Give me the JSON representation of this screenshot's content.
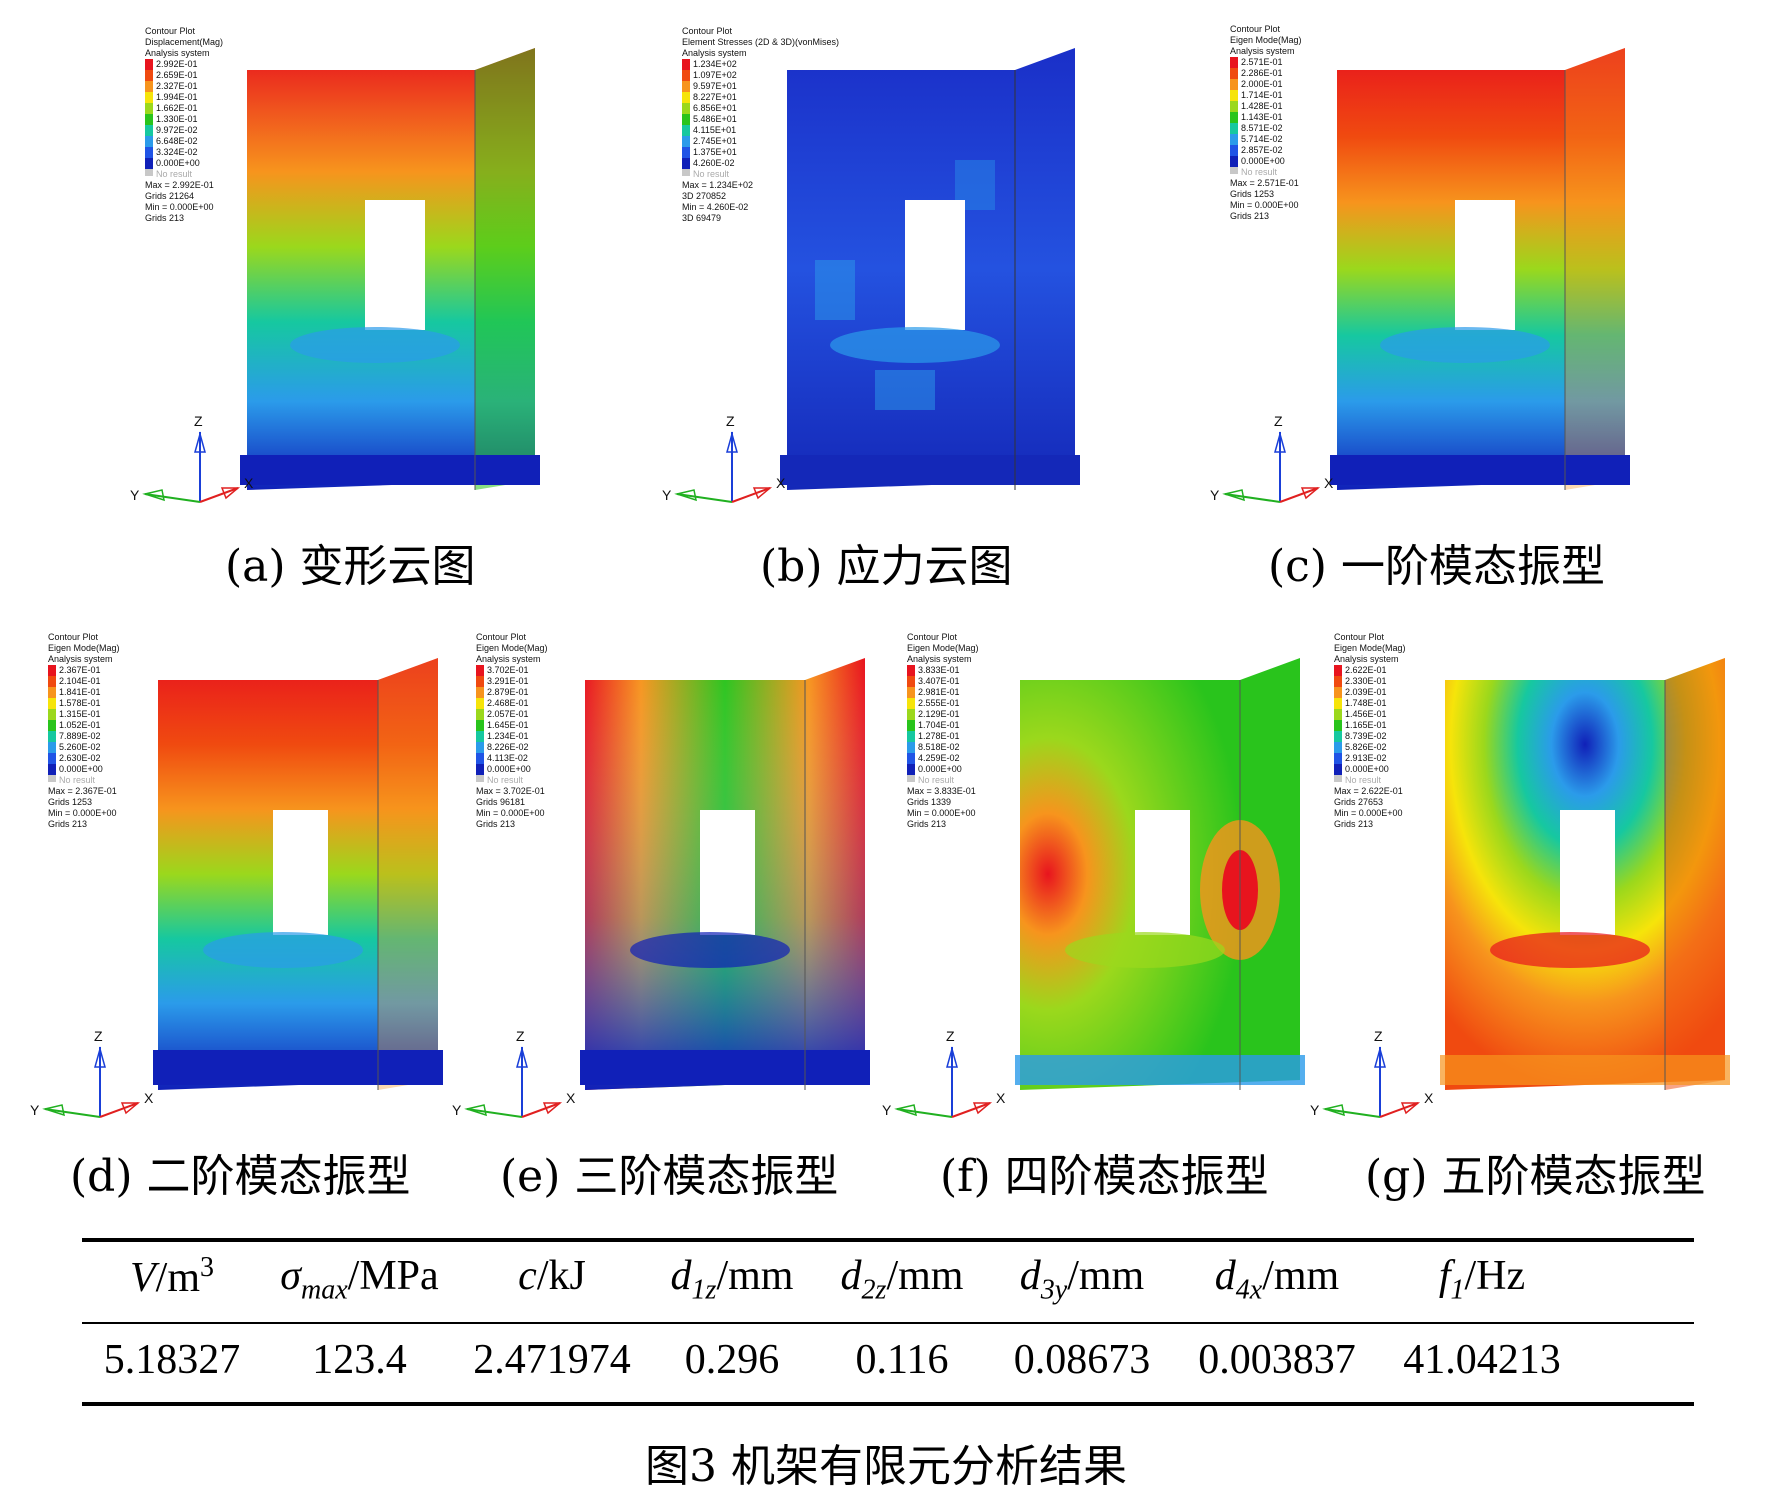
{
  "panels": [
    {
      "id": "a",
      "caption": "(a) 变形云图",
      "legend": {
        "title": [
          "Contour Plot",
          "Displacement(Mag)",
          "Analysis system"
        ],
        "values": [
          "2.992E-01",
          "2.659E-01",
          "2.327E-01",
          "1.994E-01",
          "1.662E-01",
          "1.330E-01",
          "9.972E-02",
          "6.648E-02",
          "3.324E-02",
          "0.000E+00"
        ],
        "no_result": "No result",
        "footer": [
          "Max = 2.992E-01",
          "Grids 21264",
          "Min = 0.000E+00",
          "Grids 213"
        ]
      },
      "axes": {
        "z": "Z",
        "y": "Y",
        "x": "X"
      }
    },
    {
      "id": "b",
      "caption": "(b) 应力云图",
      "legend": {
        "title": [
          "Contour Plot",
          "Element Stresses (2D & 3D)(vonMises)",
          "Analysis system"
        ],
        "values": [
          "1.234E+02",
          "1.097E+02",
          "9.597E+01",
          "8.227E+01",
          "6.856E+01",
          "5.486E+01",
          "4.115E+01",
          "2.745E+01",
          "1.375E+01",
          "4.260E-02"
        ],
        "no_result": "No result",
        "footer": [
          "Max = 1.234E+02",
          "3D 270852",
          "Min = 4.260E-02",
          "3D 69479"
        ]
      },
      "axes": {
        "z": "Z",
        "y": "Y",
        "x": "X"
      }
    },
    {
      "id": "c",
      "caption": "(c) 一阶模态振型",
      "legend": {
        "title": [
          "Contour Plot",
          "Eigen Mode(Mag)",
          "Analysis system"
        ],
        "values": [
          "2.571E-01",
          "2.286E-01",
          "2.000E-01",
          "1.714E-01",
          "1.428E-01",
          "1.143E-01",
          "8.571E-02",
          "5.714E-02",
          "2.857E-02",
          "0.000E+00"
        ],
        "no_result": "No result",
        "footer": [
          "Max = 2.571E-01",
          "Grids 1253",
          "Min = 0.000E+00",
          "Grids 213"
        ]
      },
      "axes": {
        "z": "Z",
        "y": "Y",
        "x": "X"
      }
    },
    {
      "id": "d",
      "caption": "(d) 二阶模态振型",
      "legend": {
        "title": [
          "Contour Plot",
          "Eigen Mode(Mag)",
          "Analysis system"
        ],
        "values": [
          "2.367E-01",
          "2.104E-01",
          "1.841E-01",
          "1.578E-01",
          "1.315E-01",
          "1.052E-01",
          "7.889E-02",
          "5.260E-02",
          "2.630E-02",
          "0.000E+00"
        ],
        "no_result": "No result",
        "footer": [
          "Max = 2.367E-01",
          "Grids 1253",
          "Min = 0.000E+00",
          "Grids 213"
        ]
      },
      "axes": {
        "z": "Z",
        "y": "Y",
        "x": "X"
      }
    },
    {
      "id": "e",
      "caption": "(e) 三阶模态振型",
      "legend": {
        "title": [
          "Contour Plot",
          "Eigen Mode(Mag)",
          "Analysis system"
        ],
        "values": [
          "3.702E-01",
          "3.291E-01",
          "2.879E-01",
          "2.468E-01",
          "2.057E-01",
          "1.645E-01",
          "1.234E-01",
          "8.226E-02",
          "4.113E-02",
          "0.000E+00"
        ],
        "no_result": "No result",
        "footer": [
          "Max = 3.702E-01",
          "Grids 96181",
          "Min = 0.000E+00",
          "Grids 213"
        ]
      },
      "axes": {
        "z": "Z",
        "y": "Y",
        "x": "X"
      }
    },
    {
      "id": "f",
      "caption": "(f) 四阶模态振型",
      "legend": {
        "title": [
          "Contour Plot",
          "Eigen Mode(Mag)",
          "Analysis system"
        ],
        "values": [
          "3.833E-01",
          "3.407E-01",
          "2.981E-01",
          "2.555E-01",
          "2.129E-01",
          "1.704E-01",
          "1.278E-01",
          "8.518E-02",
          "4.259E-02",
          "0.000E+00"
        ],
        "no_result": "No result",
        "footer": [
          "Max = 3.833E-01",
          "Grids 1339",
          "Min = 0.000E+00",
          "Grids 213"
        ]
      },
      "axes": {
        "z": "Z",
        "y": "Y",
        "x": "X"
      }
    },
    {
      "id": "g",
      "caption": "(g) 五阶模态振型",
      "legend": {
        "title": [
          "Contour Plot",
          "Eigen Mode(Mag)",
          "Analysis system"
        ],
        "values": [
          "2.622E-01",
          "2.330E-01",
          "2.039E-01",
          "1.748E-01",
          "1.456E-01",
          "1.165E-01",
          "8.739E-02",
          "5.826E-02",
          "2.913E-02",
          "0.000E+00"
        ],
        "no_result": "No result",
        "footer": [
          "Max = 2.622E-01",
          "Grids 27653",
          "Min = 0.000E+00",
          "Grids 213"
        ]
      },
      "axes": {
        "z": "Z",
        "y": "Y",
        "x": "X"
      }
    }
  ],
  "legend_colors": [
    "#e8141e",
    "#f04a10",
    "#f7941d",
    "#f6e40a",
    "#9bd81c",
    "#29c41c",
    "#16c8a0",
    "#2b9bea",
    "#2054e6",
    "#1020b8"
  ],
  "no_result_color": "#c8c8c8",
  "table": {
    "headers": [
      {
        "main": "V",
        "sub": "",
        "sup": "3",
        "unit_pre": "/m",
        "unit_post": ""
      },
      {
        "main": "σ",
        "sub": "max",
        "sup": "",
        "unit_pre": "/MPa",
        "unit_post": ""
      },
      {
        "main": "c",
        "sub": "",
        "sup": "",
        "unit_pre": "/kJ",
        "unit_post": ""
      },
      {
        "main": "d",
        "sub": "1z",
        "sup": "",
        "unit_pre": "/mm",
        "unit_post": ""
      },
      {
        "main": "d",
        "sub": "2z",
        "sup": "",
        "unit_pre": "/mm",
        "unit_post": ""
      },
      {
        "main": "d",
        "sub": "3y",
        "sup": "",
        "unit_pre": "/mm",
        "unit_post": ""
      },
      {
        "main": "d",
        "sub": "4x",
        "sup": "",
        "unit_pre": "/mm",
        "unit_post": ""
      },
      {
        "main": "f",
        "sub": "1",
        "sup": "",
        "unit_pre": "/Hz",
        "unit_post": ""
      }
    ],
    "values": [
      "5.18327",
      "123.4",
      "2.471974",
      "0.296",
      "0.116",
      "0.08673",
      "0.003837",
      "41.04213"
    ]
  },
  "figure_title": "图3  机架有限元分析结果"
}
